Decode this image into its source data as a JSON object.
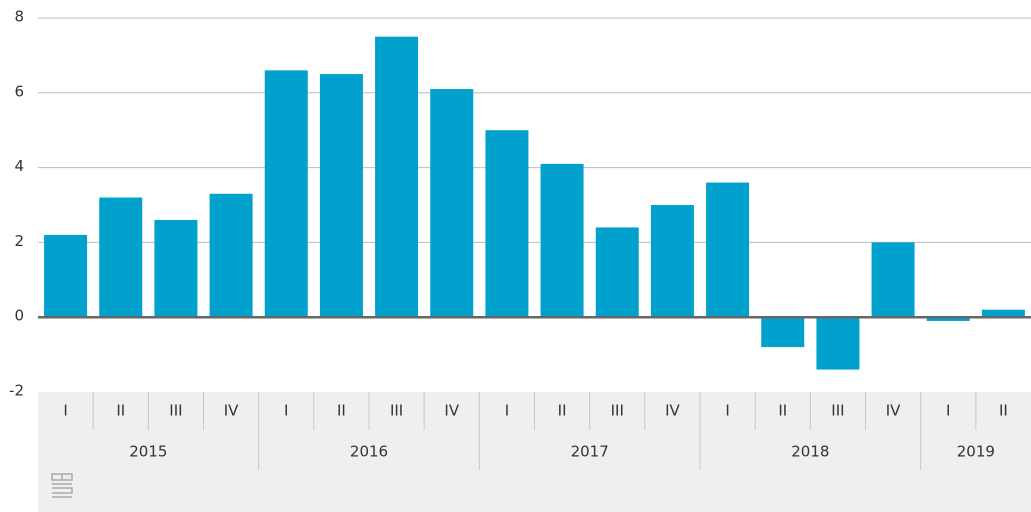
{
  "chart_data": {
    "type": "bar",
    "groups": [
      {
        "name": "2015",
        "categories": [
          "I",
          "II",
          "III",
          "IV"
        ]
      },
      {
        "name": "2016",
        "categories": [
          "I",
          "II",
          "III",
          "IV"
        ]
      },
      {
        "name": "2017",
        "categories": [
          "I",
          "II",
          "III",
          "IV"
        ]
      },
      {
        "name": "2018",
        "categories": [
          "I",
          "II",
          "III",
          "IV"
        ]
      },
      {
        "name": "2019",
        "categories": [
          "I",
          "II"
        ]
      }
    ],
    "values": [
      2.2,
      3.2,
      2.6,
      3.3,
      6.6,
      6.5,
      7.5,
      6.1,
      5.0,
      4.1,
      2.4,
      3.0,
      3.6,
      -0.8,
      -1.4,
      2.0,
      -0.1,
      0.2
    ],
    "color": "#00a1cd",
    "ylim": [
      -2,
      8
    ],
    "yticks": [
      -2,
      0,
      2,
      4,
      6,
      8
    ],
    "grid": true
  }
}
